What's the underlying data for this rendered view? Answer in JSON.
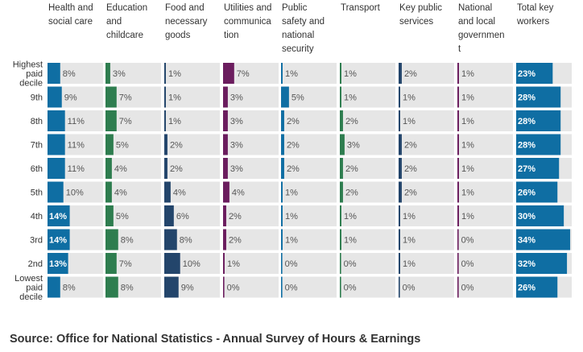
{
  "chart_data": {
    "type": "bar",
    "title": "",
    "categories": [
      "Highest paid decile",
      "9th",
      "8th",
      "7th",
      "6th",
      "5th",
      "4th",
      "3rd",
      "2nd",
      "Lowest paid decile"
    ],
    "category_lines": [
      [
        "Highest",
        "paid",
        "decile"
      ],
      [
        "9th"
      ],
      [
        "8th"
      ],
      [
        "7th"
      ],
      [
        "6th"
      ],
      [
        "5th"
      ],
      [
        "4th"
      ],
      [
        "3rd"
      ],
      [
        "2nd"
      ],
      [
        "Lowest",
        "paid",
        "decile"
      ]
    ],
    "series": [
      {
        "name": "Health and social care",
        "header_lines": [
          "Health and",
          "social care"
        ],
        "color": "#0f6ea3",
        "values": [
          8,
          9,
          11,
          11,
          11,
          10,
          14,
          14,
          13,
          8
        ]
      },
      {
        "name": "Education and childcare",
        "header_lines": [
          "Education",
          "and",
          "childcare"
        ],
        "color": "#2e7d4f",
        "values": [
          3,
          7,
          7,
          5,
          4,
          4,
          5,
          8,
          7,
          8
        ]
      },
      {
        "name": "Food and necessary goods",
        "header_lines": [
          "Food and",
          "necessary",
          "goods"
        ],
        "color": "#23456b",
        "values": [
          1,
          1,
          1,
          2,
          2,
          4,
          6,
          8,
          10,
          9
        ]
      },
      {
        "name": "Utilities and communication",
        "header_lines": [
          "Utilities and",
          "communica",
          "tion"
        ],
        "color": "#6b1d5e",
        "values": [
          7,
          3,
          3,
          3,
          3,
          4,
          2,
          2,
          1,
          0
        ]
      },
      {
        "name": "Public safety and national security",
        "header_lines": [
          "Public",
          "safety and",
          "national",
          "security"
        ],
        "color": "#0f6ea3",
        "values": [
          1,
          5,
          2,
          2,
          2,
          1,
          1,
          1,
          0,
          0
        ]
      },
      {
        "name": "Transport",
        "header_lines": [
          "Transport"
        ],
        "color": "#2e7d4f",
        "values": [
          1,
          1,
          2,
          3,
          2,
          2,
          1,
          1,
          0,
          0
        ]
      },
      {
        "name": "Key public services",
        "header_lines": [
          "Key public",
          "services"
        ],
        "color": "#23456b",
        "values": [
          2,
          1,
          1,
          2,
          2,
          2,
          1,
          1,
          1,
          0
        ]
      },
      {
        "name": "National and local government",
        "header_lines": [
          "National",
          "and local",
          "governmen",
          "t"
        ],
        "color": "#6b1d5e",
        "values": [
          1,
          1,
          1,
          1,
          1,
          1,
          1,
          0,
          0,
          0
        ]
      },
      {
        "name": "Total key workers",
        "header_lines": [
          "Total key",
          "workers"
        ],
        "color": "#0f6ea3",
        "values": [
          23,
          28,
          28,
          28,
          27,
          26,
          30,
          34,
          32,
          26
        ]
      }
    ],
    "value_suffix": "%",
    "ylim": [
      0,
      35
    ],
    "legend": "none",
    "grid": false
  },
  "source": "Source: Office for National Statistics - Annual Survey of Hours & Earnings"
}
